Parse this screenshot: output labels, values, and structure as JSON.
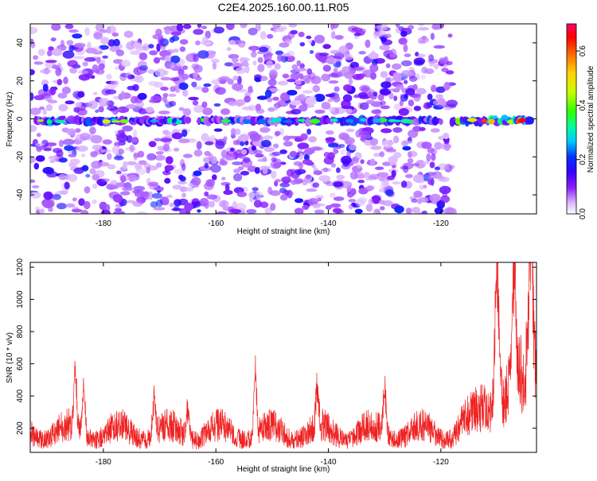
{
  "title": "C2E4.2025.160.00.11.R05",
  "chart_data": [
    {
      "type": "heatmap",
      "xlabel": "Height of straight line (km)",
      "ylabel": "Frequency (Hz)",
      "xlim": [
        -193,
        -103
      ],
      "ylim": [
        -50,
        50
      ],
      "x_ticks": [
        -180,
        -160,
        -140,
        -120
      ],
      "x_tick_labels": [
        "-180",
        "-160",
        "-140",
        "-120"
      ],
      "y_ticks": [
        -40,
        -20,
        0,
        20,
        40
      ],
      "y_tick_labels": [
        "-40",
        "-20",
        "0",
        "20",
        "40"
      ],
      "colorbar": {
        "label": "Normalized spectral amplitude",
        "range": [
          0.0,
          0.7
        ],
        "ticks": [
          0.0,
          0.2,
          0.4,
          0.6
        ],
        "tick_labels": [
          "0.0",
          "0.2",
          "0.4",
          "0.6"
        ],
        "colormap": [
          "#ffffff",
          "#d9b3ff",
          "#8a1cff",
          "#3300ff",
          "#0033ff",
          "#00c8ff",
          "#00ff9a",
          "#33ff00",
          "#c8ff00",
          "#ffd200",
          "#ff6a00",
          "#ff0000",
          "#ff0066"
        ]
      },
      "signal_band": {
        "frequency": -1,
        "halfwidth_hz": 3.5,
        "segments": [
          {
            "x": [
              -192,
              -176
            ],
            "peak": 0.45
          },
          {
            "x": [
              -175,
              -165
            ],
            "peak": 0.35
          },
          {
            "x": [
              -163,
              -120
            ],
            "peak": 0.4
          },
          {
            "x": [
              -118,
              -104
            ],
            "peak": 0.7
          }
        ],
        "noise_data_ends_at_x": -118
      }
    },
    {
      "type": "line",
      "xlabel": "Height of straight line (km)",
      "ylabel": "SNR (10 * v/v)",
      "xlim": [
        -193,
        -103
      ],
      "ylim": [
        50,
        1230
      ],
      "x_ticks": [
        -180,
        -160,
        -140,
        -120
      ],
      "x_tick_labels": [
        "-180",
        "-160",
        "-140",
        "-120"
      ],
      "y_ticks": [
        200,
        400,
        600,
        800,
        1000,
        1200
      ],
      "y_tick_labels": [
        "200",
        "400",
        "600",
        "800",
        "1000",
        "1200"
      ],
      "series": [
        {
          "color": "#ee2222",
          "baseline": 150,
          "peaks": [
            {
              "x": -185,
              "y": 560
            },
            {
              "x": -183.5,
              "y": 480
            },
            {
              "x": -171,
              "y": 440
            },
            {
              "x": -165,
              "y": 360
            },
            {
              "x": -153,
              "y": 580
            },
            {
              "x": -142,
              "y": 420
            },
            {
              "x": -130,
              "y": 490
            },
            {
              "x": -110,
              "y": 1200
            },
            {
              "x": -107,
              "y": 1000
            },
            {
              "x": -104,
              "y": 1230
            }
          ]
        }
      ]
    }
  ]
}
